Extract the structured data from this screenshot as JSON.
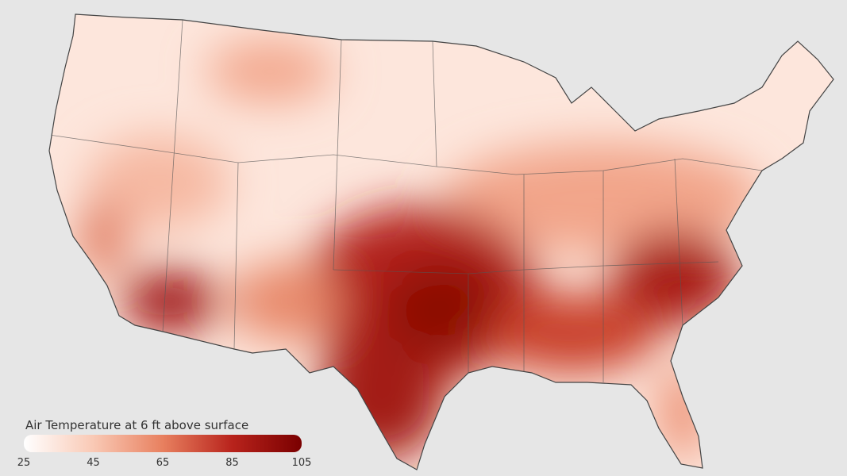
{
  "legend": {
    "title": "Air Temperature at 6 ft above surface",
    "lim": [
      25,
      105
    ],
    "ticks": [
      25,
      45,
      65,
      85,
      105
    ],
    "colors": [
      "#ffffff",
      "#f9c9b5",
      "#e8805f",
      "#b8231c",
      "#7a0000"
    ]
  }
}
